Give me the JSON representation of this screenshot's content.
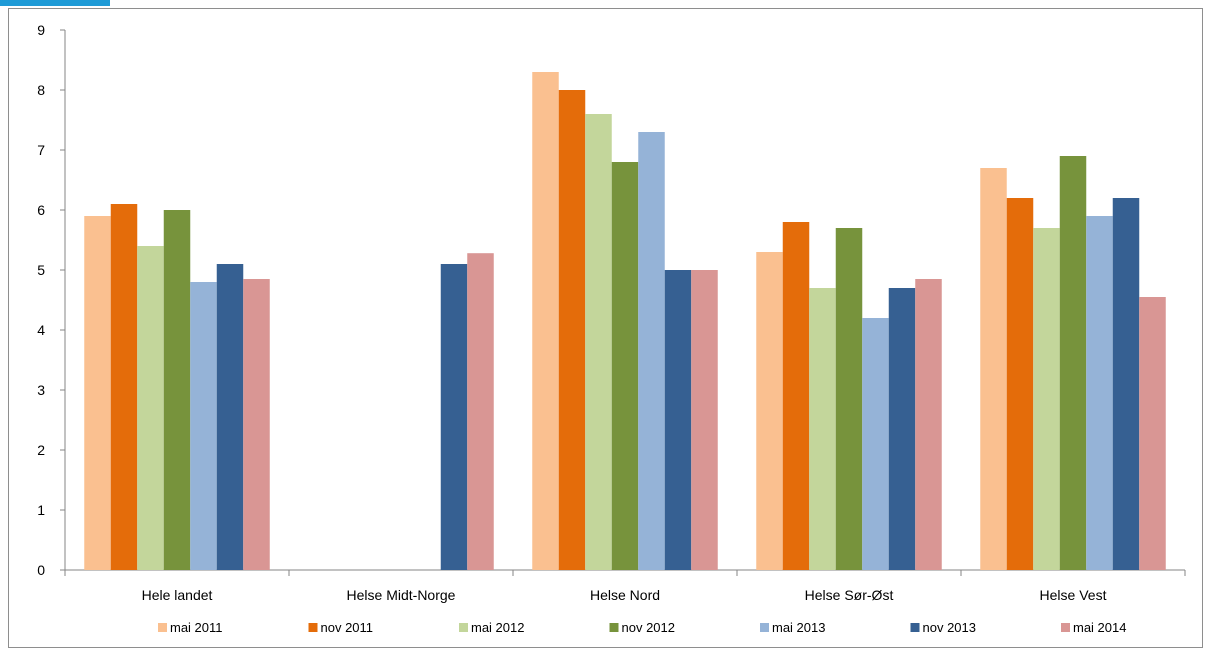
{
  "chart_data": {
    "type": "bar",
    "title": "",
    "xlabel": "",
    "ylabel": "",
    "ylim": [
      0,
      9
    ],
    "yticks": [
      0,
      1,
      2,
      3,
      4,
      5,
      6,
      7,
      8,
      9
    ],
    "grid": false,
    "legend_position": "bottom",
    "categories": [
      "Hele landet",
      "Helse Midt-Norge",
      "Helse Nord",
      "Helse Sør-Øst",
      "Helse Vest"
    ],
    "series": [
      {
        "name": "mai 2011",
        "color": "#fac090",
        "values": [
          5.9,
          null,
          8.3,
          5.3,
          6.7
        ]
      },
      {
        "name": "nov 2011",
        "color": "#e46c0a",
        "values": [
          6.1,
          null,
          8.0,
          5.8,
          6.2
        ]
      },
      {
        "name": "mai 2012",
        "color": "#c3d69b",
        "values": [
          5.4,
          null,
          7.6,
          4.7,
          5.7
        ]
      },
      {
        "name": "nov 2012",
        "color": "#77933c",
        "values": [
          6.0,
          null,
          6.8,
          5.7,
          6.9
        ]
      },
      {
        "name": "mai 2013",
        "color": "#95b3d7",
        "values": [
          4.8,
          null,
          7.3,
          4.2,
          5.9
        ]
      },
      {
        "name": "nov 2013",
        "color": "#366092",
        "values": [
          5.1,
          5.1,
          5.0,
          4.7,
          6.2
        ]
      },
      {
        "name": "mai 2014",
        "color": "#d99694",
        "values": [
          4.85,
          5.28,
          5.0,
          4.85,
          4.55
        ]
      }
    ]
  }
}
